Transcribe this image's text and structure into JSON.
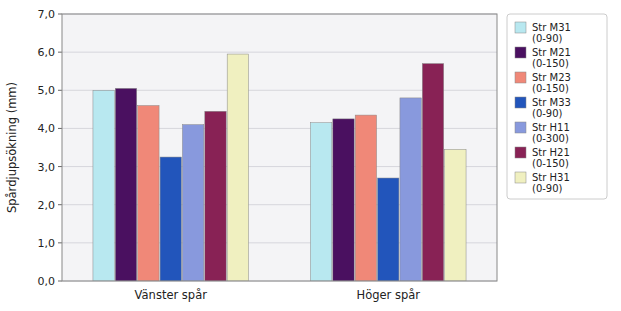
{
  "chart_data": {
    "type": "bar",
    "y_label": "Spårdjupsökning (mm)",
    "categories": [
      "Vänster spår",
      "Höger spår"
    ],
    "series": [
      {
        "name": "Str M31\n(0-90)",
        "color": "#b8e8f0",
        "values": [
          5.0,
          4.15
        ]
      },
      {
        "name": "Str M21\n(0-150)",
        "color": "#4a1060",
        "values": [
          5.05,
          4.25
        ]
      },
      {
        "name": "Str M23\n(0-150)",
        "color": "#f08878",
        "values": [
          4.6,
          4.35
        ]
      },
      {
        "name": "Str M33\n(0-90)",
        "color": "#2255bb",
        "values": [
          3.25,
          2.7
        ]
      },
      {
        "name": "Str H11\n(0-300)",
        "color": "#8899dd",
        "values": [
          4.1,
          4.8
        ]
      },
      {
        "name": "Str H21\n(0-150)",
        "color": "#882255",
        "values": [
          4.45,
          5.7
        ]
      },
      {
        "name": "Str H31\n(0-90)",
        "color": "#f0f0c0",
        "values": [
          5.95,
          3.45
        ]
      }
    ],
    "ylim": [
      0,
      7.0
    ],
    "yticks": [
      {
        "value": 0.0,
        "label": "0,0"
      },
      {
        "value": 1.0,
        "label": "1,0"
      },
      {
        "value": 2.0,
        "label": "2,0"
      },
      {
        "value": 3.0,
        "label": "3,0"
      },
      {
        "value": 4.0,
        "label": "4,0"
      },
      {
        "value": 5.0,
        "label": "5,0"
      },
      {
        "value": 6.0,
        "label": "6,0"
      },
      {
        "value": 7.0,
        "label": "7,0"
      }
    ],
    "grid": true,
    "legend": "right"
  }
}
